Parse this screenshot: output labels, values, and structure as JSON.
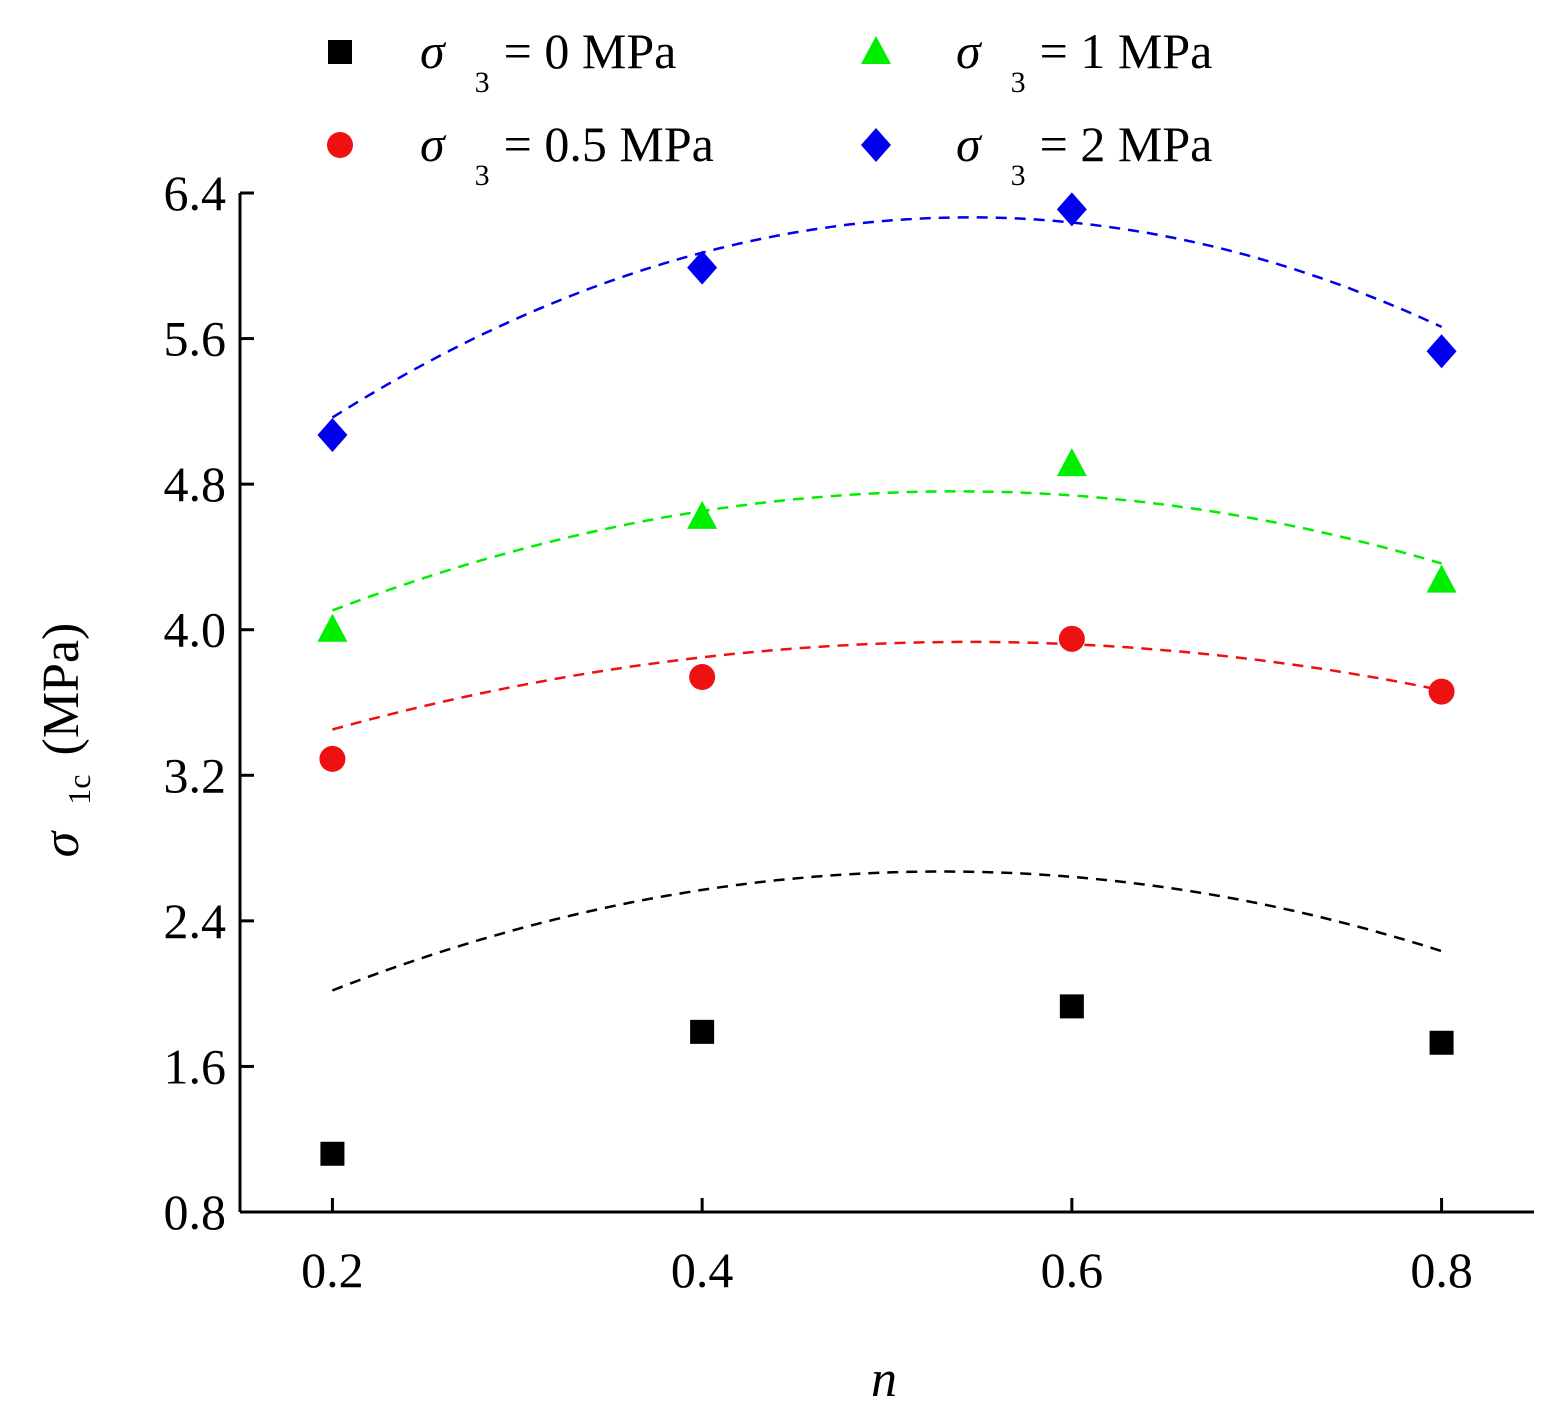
{
  "chart_data": {
    "type": "scatter",
    "title": "",
    "xlabel": "n",
    "ylabel": {
      "symbol": "σ",
      "subscript": "1c",
      "unit": "(MPa)"
    },
    "xlim": [
      0.15,
      0.85
    ],
    "ylim": [
      0.8,
      6.4
    ],
    "xticks": [
      "0.2",
      "0.4",
      "0.6",
      "0.8"
    ],
    "yticks": [
      "0.8",
      "1.6",
      "2.4",
      "3.2",
      "4.0",
      "4.8",
      "5.6",
      "6.4"
    ],
    "x": [
      0.2,
      0.4,
      0.6,
      0.8
    ],
    "legend_position": "top",
    "series": [
      {
        "name": "σ3 = 0 MPa",
        "symbol": "σ",
        "subscript": "3",
        "text": "= 0 MPa",
        "marker": "square",
        "color": "#000000",
        "values": [
          1.12,
          1.79,
          1.93,
          1.73
        ],
        "fit": [
          0.986,
          6.36,
          -6.0
        ]
      },
      {
        "name": "σ3 = 0.5 MPa",
        "symbol": "σ",
        "subscript": "3",
        "text": "= 0.5 MPa",
        "marker": "circle",
        "color": "#ee1111",
        "values": [
          3.29,
          3.74,
          3.95,
          3.66
        ],
        "fit": [
          2.73,
          4.42,
          -4.06
        ]
      },
      {
        "name": "σ3 = 1 MPa",
        "symbol": "σ",
        "subscript": "3",
        "text": "= 1 MPa",
        "marker": "triangle",
        "color": "#00ee00",
        "values": [
          4.0,
          4.62,
          4.91,
          4.27
        ],
        "fit": [
          3.1,
          6.18,
          -5.75
        ]
      },
      {
        "name": "σ3 = 2 MPa",
        "symbol": "σ",
        "subscript": "3",
        "text": "= 2 MPa",
        "marker": "diamond",
        "color": "#0000ee",
        "values": [
          5.07,
          5.99,
          6.31,
          5.53
        ],
        "fit": [
          3.52,
          10.08,
          -9.25
        ]
      }
    ]
  }
}
